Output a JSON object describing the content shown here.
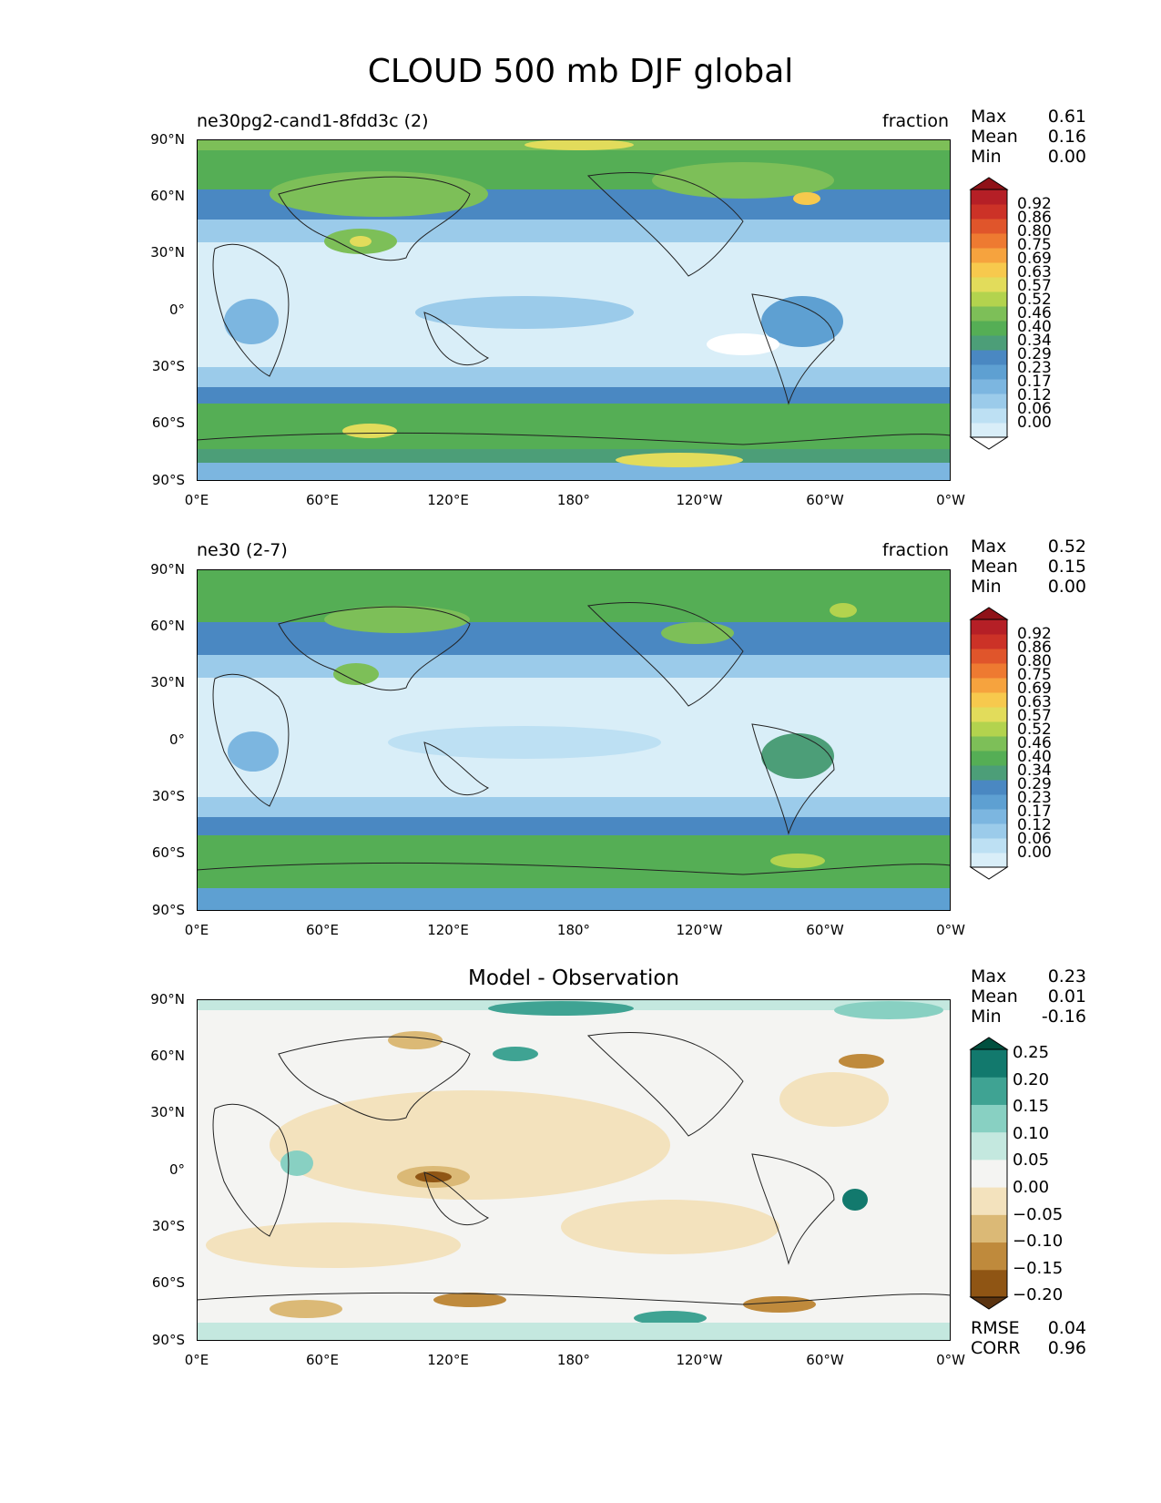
{
  "figure_title": "CLOUD 500 mb DJF global",
  "x_ticks": [
    "0°E",
    "60°E",
    "120°E",
    "180°",
    "120°W",
    "60°W",
    "0°W"
  ],
  "y_ticks": [
    "90°N",
    "60°N",
    "30°N",
    "0°",
    "30°S",
    "60°S",
    "90°S"
  ],
  "stat_labels": {
    "max": "Max",
    "mean": "Mean",
    "min": "Min",
    "rmse": "RMSE",
    "corr": "CORR"
  },
  "colors": {
    "seq": [
      "#ffffff",
      "#d9eef8",
      "#bde0f3",
      "#9bcbea",
      "#7cb6e0",
      "#5ea0d2",
      "#4a88c2",
      "#4c9e78",
      "#55ae55",
      "#7dbf58",
      "#b3d34e",
      "#e2dc5b",
      "#f7c94d",
      "#f6a33e",
      "#ee7a31",
      "#e0552b",
      "#cc3227",
      "#b51f26",
      "#8f1218"
    ],
    "div": [
      "#5a3310",
      "#8f5514",
      "#bf8a3c",
      "#dbb976",
      "#f3e2bd",
      "#f4f4f2",
      "#c4e8df",
      "#88d0c2",
      "#3fa393",
      "#12796d",
      "#00503f"
    ]
  },
  "panels": [
    {
      "title_left": "ne30pg2-cand1-8fdd3c (2)",
      "title_right": "fraction",
      "stats": {
        "max": "0.61",
        "mean": "0.16",
        "min": "0.00"
      },
      "colorbar_labels": [
        "0.92",
        "0.86",
        "0.80",
        "0.75",
        "0.69",
        "0.63",
        "0.57",
        "0.52",
        "0.46",
        "0.40",
        "0.34",
        "0.29",
        "0.23",
        "0.17",
        "0.12",
        "0.06",
        "0.00"
      ]
    },
    {
      "title_left": "ne30 (2-7)",
      "title_right": "fraction",
      "stats": {
        "max": "0.52",
        "mean": "0.15",
        "min": "0.00"
      },
      "colorbar_labels": [
        "0.92",
        "0.86",
        "0.80",
        "0.75",
        "0.69",
        "0.63",
        "0.57",
        "0.52",
        "0.46",
        "0.40",
        "0.34",
        "0.29",
        "0.23",
        "0.17",
        "0.12",
        "0.06",
        "0.00"
      ]
    },
    {
      "title_center": "Model - Observation",
      "stats": {
        "max": "0.23",
        "mean": "0.01",
        "min": "-0.16",
        "rmse": "0.04",
        "corr": "0.96"
      },
      "colorbar_labels": [
        "0.25",
        "0.20",
        "0.15",
        "0.10",
        "0.05",
        "0.00",
        "−0.05",
        "−0.10",
        "−0.15",
        "−0.20"
      ]
    }
  ]
}
